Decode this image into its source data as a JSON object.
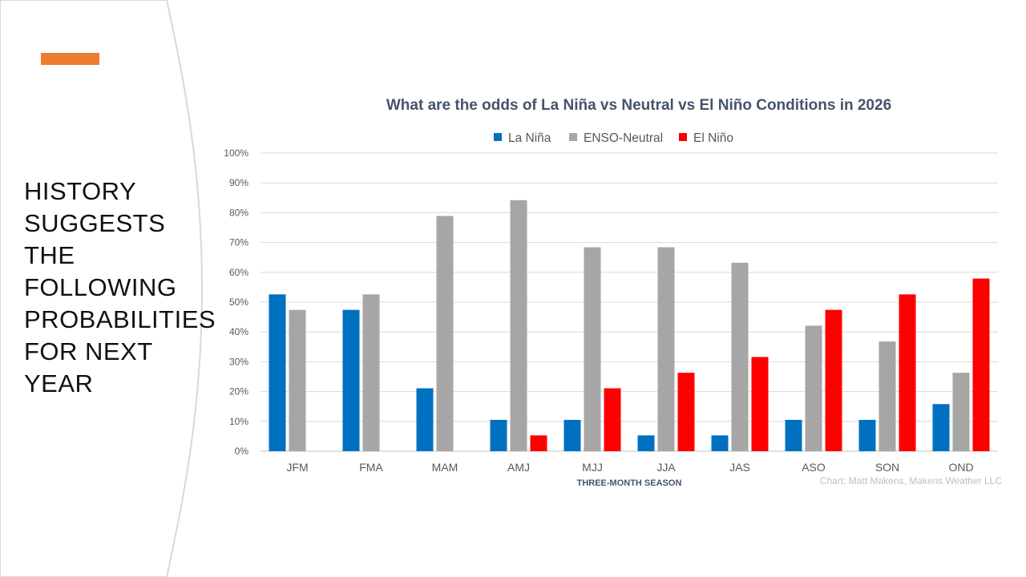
{
  "slide": {
    "heading_lines": [
      "HISTORY",
      "SUGGESTS",
      "THE",
      "FOLLOWING",
      "PROBABILITIES",
      "FOR NEXT",
      "YEAR"
    ],
    "colors": {
      "accent": "#ED7D31",
      "panel_background": "#FFFFFF",
      "slide_background": "#F2F2F2"
    }
  },
  "chart_data": {
    "type": "bar",
    "title": "What are the odds of La Niña vs Neutral vs El Niño Conditions in 2026",
    "xlabel": "THREE-MONTH SEASON",
    "ylabel": "",
    "ylim": [
      0,
      100
    ],
    "y_ticks": [
      "0%",
      "10%",
      "20%",
      "30%",
      "40%",
      "50%",
      "60%",
      "70%",
      "80%",
      "90%",
      "100%"
    ],
    "grid": true,
    "legend_position": "top-center",
    "categories": [
      "JFM",
      "FMA",
      "MAM",
      "AMJ",
      "MJJ",
      "JJA",
      "JAS",
      "ASO",
      "SON",
      "OND"
    ],
    "series": [
      {
        "name": "La Niña",
        "color": "#0070C0",
        "values": [
          52.6,
          47.4,
          21.1,
          10.5,
          10.5,
          5.3,
          5.3,
          10.5,
          10.5,
          15.8
        ]
      },
      {
        "name": "ENSO-Neutral",
        "color": "#A6A6A6",
        "values": [
          47.4,
          52.6,
          78.9,
          84.2,
          68.4,
          68.4,
          63.2,
          42.1,
          36.8,
          26.3
        ]
      },
      {
        "name": "El Niño",
        "color": "#FF0000",
        "values": [
          0,
          0,
          0,
          5.3,
          21.1,
          26.3,
          31.6,
          47.4,
          52.6,
          57.9
        ]
      }
    ],
    "source": "Chart: Matt Makens, Makens Weather LLC"
  }
}
